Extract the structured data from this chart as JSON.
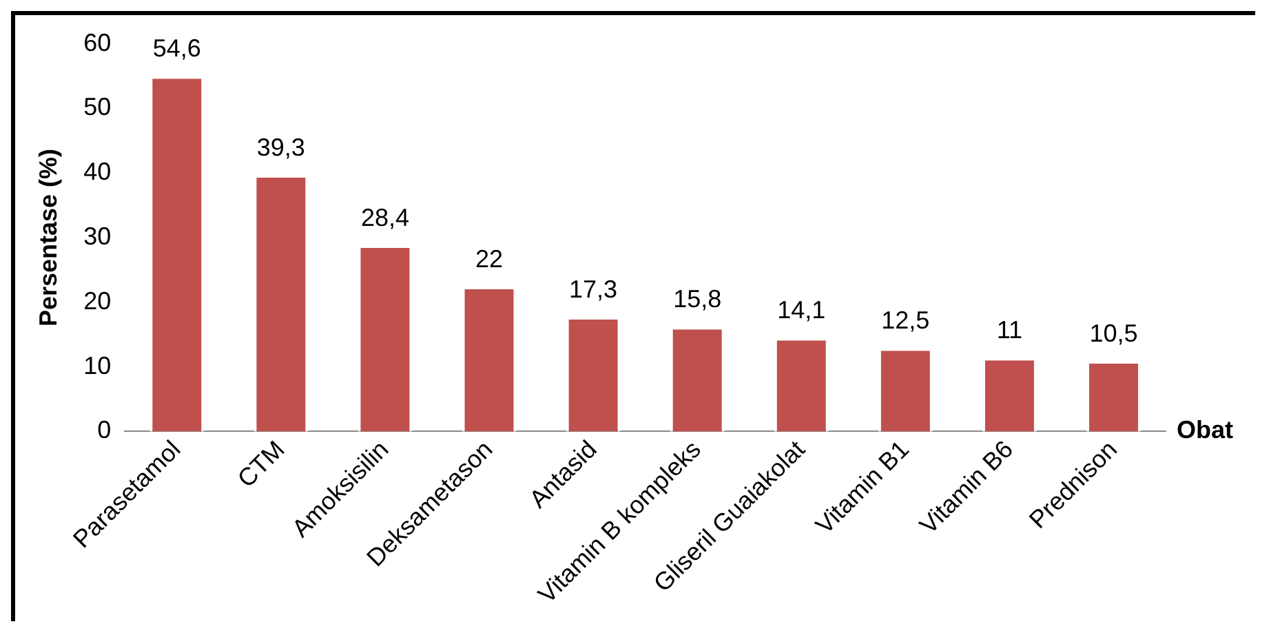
{
  "chart_data": {
    "type": "bar",
    "xlabel": "Obat",
    "ylabel": "Persentase (%)",
    "categories": [
      "Parasetamol",
      "CTM",
      "Amoksisilin",
      "Deksametason",
      "Antasid",
      "Vitamin B kompleks",
      "Gliseril Guaiakolat",
      "Vitamin B1",
      "Vitamin B6",
      "Prednison"
    ],
    "values": [
      54.6,
      39.3,
      28.4,
      22,
      17.3,
      15.8,
      14.1,
      12.5,
      11,
      10.5
    ],
    "value_labels": [
      "54,6",
      "39,3",
      "28,4",
      "22",
      "17,3",
      "15,8",
      "14,1",
      "12,5",
      "11",
      "10,5"
    ],
    "color": "#c0504d",
    "ylim": [
      0,
      60
    ],
    "yticks": [
      0,
      10,
      20,
      30,
      40,
      50,
      60
    ],
    "grid": false,
    "legend": false
  }
}
